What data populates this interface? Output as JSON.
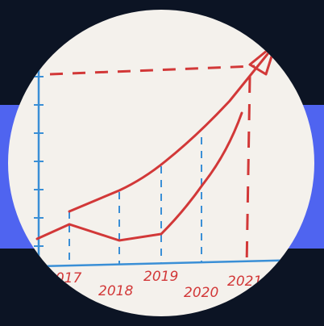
{
  "photo": {
    "years": [
      "2017",
      "2018",
      "2019",
      "2020",
      "2021"
    ]
  },
  "chart_data": {
    "type": "line",
    "categories": [
      "2017",
      "2018",
      "2019",
      "2020",
      "2021"
    ],
    "series": [
      {
        "values": [
          2.4,
          3.0,
          4.2,
          6.0,
          9.5
        ]
      },
      {
        "values": [
          1.2,
          0.6,
          0.8,
          3.5,
          7.2
        ]
      }
    ],
    "xlabel": "",
    "ylabel": "",
    "ylim": [
      0,
      10
    ],
    "colors": {
      "lines": "#d23838",
      "axes": "#3a8fd6",
      "paper": "#f4f1ec",
      "band": "#4f64f0",
      "background": "#0c1424"
    }
  }
}
